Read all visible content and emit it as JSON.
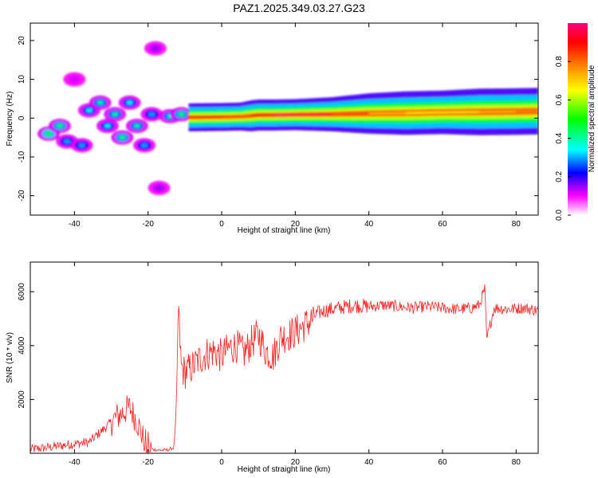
{
  "title": "PAZ1.2025.349.03.27.G23",
  "chart_data": [
    {
      "type": "heatmap",
      "title": "",
      "xlabel": "Height of straight line (km)",
      "ylabel": "Frequency (Hz)",
      "xlim": [
        -52,
        86
      ],
      "ylim": [
        -25,
        24.5
      ],
      "xticks": [
        -40,
        -20,
        0,
        20,
        40,
        60,
        80
      ],
      "yticks": [
        -20,
        -10,
        0,
        10,
        20
      ],
      "grid": false,
      "colorbar": {
        "label": "Normalized spectral amplitude",
        "range": [
          0,
          1
        ],
        "ticks": [
          0.0,
          0.2,
          0.4,
          0.6,
          0.8
        ],
        "colormap": [
          "#ff00ff",
          "#0000ff",
          "#00ffff",
          "#00ff00",
          "#ffff00",
          "#ff8000",
          "#ff0000",
          "#ff0080"
        ]
      },
      "ridges": [
        {
          "x": [
            -9,
            0,
            5,
            8,
            10,
            14,
            20,
            30,
            40,
            50,
            60,
            70,
            80,
            86
          ],
          "y": [
            0.2,
            0.3,
            0.4,
            0.6,
            0.8,
            0.8,
            0.9,
            1.0,
            1.2,
            1.3,
            1.5,
            1.6,
            1.7,
            1.8
          ],
          "amplitude": [
            0.9,
            0.85,
            0.8,
            0.85,
            0.9,
            0.95,
            1.0,
            0.9,
            0.75,
            0.7,
            0.65,
            0.7,
            0.75,
            0.8
          ],
          "spread": [
            0.9,
            0.9,
            0.9,
            1.0,
            1.0,
            1.0,
            1.0,
            1.1,
            1.3,
            1.4,
            1.4,
            1.5,
            1.5,
            1.5
          ]
        }
      ],
      "blobs": [
        {
          "x": -47,
          "y": -4,
          "a": 0.5
        },
        {
          "x": -44,
          "y": -2,
          "a": 0.45
        },
        {
          "x": -42,
          "y": -6,
          "a": 0.3
        },
        {
          "x": -38,
          "y": -7,
          "a": 0.3
        },
        {
          "x": -36,
          "y": 2,
          "a": 0.35
        },
        {
          "x": -33,
          "y": 4,
          "a": 0.4
        },
        {
          "x": -31,
          "y": -2,
          "a": 0.35
        },
        {
          "x": -29,
          "y": 1,
          "a": 0.4
        },
        {
          "x": -27,
          "y": -5,
          "a": 0.45
        },
        {
          "x": -25,
          "y": 4,
          "a": 0.35
        },
        {
          "x": -23,
          "y": -2,
          "a": 0.4
        },
        {
          "x": -21,
          "y": -7,
          "a": 0.3
        },
        {
          "x": -19,
          "y": 1,
          "a": 0.3
        },
        {
          "x": -14,
          "y": 0.5,
          "a": 0.4
        },
        {
          "x": -11,
          "y": 1,
          "a": 0.45
        },
        {
          "x": -17,
          "y": -18,
          "a": 0.15
        },
        {
          "x": -18,
          "y": 18,
          "a": 0.15
        },
        {
          "x": -40,
          "y": 10,
          "a": 0.12
        }
      ]
    },
    {
      "type": "line",
      "title": "",
      "xlabel": "Height of straight line (km)",
      "ylabel": "SNR (10 * v/v)",
      "xlim": [
        -52,
        86
      ],
      "ylim": [
        0,
        7100
      ],
      "xticks": [
        -40,
        -20,
        0,
        20,
        40,
        60,
        80
      ],
      "yticks": [
        2000,
        4000,
        6000
      ],
      "grid": false,
      "color": "#ff2020",
      "x": [
        -52,
        -48,
        -44,
        -40,
        -36,
        -32,
        -29,
        -27,
        -25,
        -23,
        -21,
        -19,
        -17,
        -15,
        -13,
        -12.2,
        -11.8,
        -11,
        -10,
        -8,
        -6,
        -4,
        -2,
        0,
        2,
        4,
        6,
        8,
        10,
        12,
        14,
        16,
        18,
        20,
        22,
        24,
        26,
        28,
        30,
        32,
        34,
        36,
        40,
        44,
        48,
        52,
        56,
        60,
        64,
        68,
        70,
        71.5,
        72,
        74,
        78,
        82,
        86
      ],
      "y": [
        150,
        200,
        280,
        350,
        420,
        900,
        1300,
        1500,
        1700,
        1200,
        400,
        150,
        120,
        120,
        200,
        1800,
        5600,
        3200,
        3000,
        3200,
        3500,
        3700,
        3800,
        3600,
        3900,
        4000,
        3700,
        4100,
        4400,
        3800,
        3600,
        4300,
        4400,
        4500,
        4700,
        4900,
        5200,
        5300,
        5350,
        5400,
        5450,
        5500,
        5450,
        5500,
        5450,
        5400,
        5450,
        5400,
        5350,
        5400,
        5500,
        6100,
        4200,
        5400,
        5350,
        5400,
        5300
      ]
    }
  ]
}
